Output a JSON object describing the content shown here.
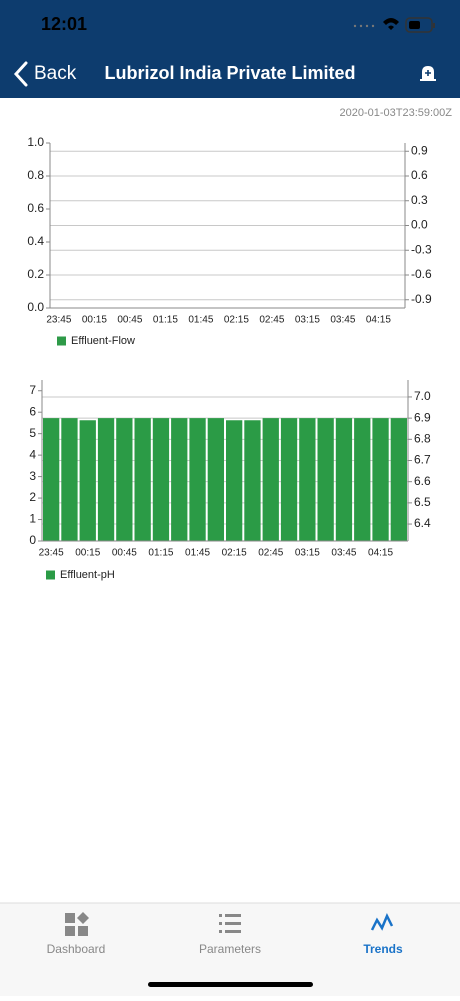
{
  "status_bar": {
    "time": "12:01"
  },
  "header": {
    "back": "Back",
    "title": "Lubrizol India Private Limited"
  },
  "timestamp": "2020-01-03T23:59:00Z",
  "chart_data": [
    {
      "type": "bar",
      "categories": [
        "23:45",
        null,
        "00:15",
        null,
        "00:45",
        null,
        "01:15",
        null,
        "01:45",
        null,
        "02:15",
        null,
        "02:45",
        null,
        "03:15",
        null,
        "03:45",
        null,
        "04:15",
        null
      ],
      "series": [
        {
          "name": "Effluent-Flow",
          "color": "#2e9a48",
          "values": [
            null,
            null,
            null,
            null,
            null,
            null,
            null,
            null,
            null,
            null,
            null,
            null,
            null,
            null,
            null,
            null,
            null,
            null,
            null,
            null
          ]
        }
      ],
      "ylim": [
        0,
        1
      ],
      "yticks": [
        {
          "value": 0,
          "label": "0.0"
        },
        0.2,
        0.4,
        0.6,
        0.8,
        {
          "value": 1,
          "label": "1.0"
        }
      ],
      "y2lim": [
        -1,
        1
      ],
      "y2ticks": [
        -0.9,
        -0.6,
        -0.3,
        {
          "value": 0,
          "label": "0.0"
        },
        0.3,
        0.6,
        0.9
      ],
      "grid": true,
      "legend": "bottom-left"
    },
    {
      "type": "bar",
      "categories": [
        "23:45",
        null,
        "00:15",
        null,
        "00:45",
        null,
        "01:15",
        null,
        "01:45",
        null,
        "02:15",
        null,
        "02:45",
        null,
        "03:15",
        null,
        "03:45",
        null,
        "04:15",
        null
      ],
      "series": [
        {
          "name": "Effluent-pH",
          "color": "#2b9b46",
          "axis": "y2",
          "values": [
            6.9,
            6.9,
            6.89,
            6.9,
            6.9,
            6.9,
            6.9,
            6.9,
            6.9,
            6.9,
            6.89,
            6.89,
            6.9,
            6.9,
            6.9,
            6.9,
            6.9,
            6.9,
            6.9,
            6.9
          ]
        }
      ],
      "ylim": [
        0,
        7.5
      ],
      "yticks": [
        0,
        1,
        2,
        3,
        4,
        5,
        6,
        7
      ],
      "y2lim": [
        6.32,
        7.08
      ],
      "y2ticks": [
        6.4,
        6.5,
        6.6,
        6.7,
        6.8,
        6.9,
        {
          "value": 7,
          "label": "7.0"
        }
      ],
      "grid": true,
      "legend": "bottom-left"
    }
  ],
  "tabs": [
    {
      "label": "Dashboard"
    },
    {
      "label": "Parameters"
    },
    {
      "label": "Trends",
      "active": true
    }
  ]
}
